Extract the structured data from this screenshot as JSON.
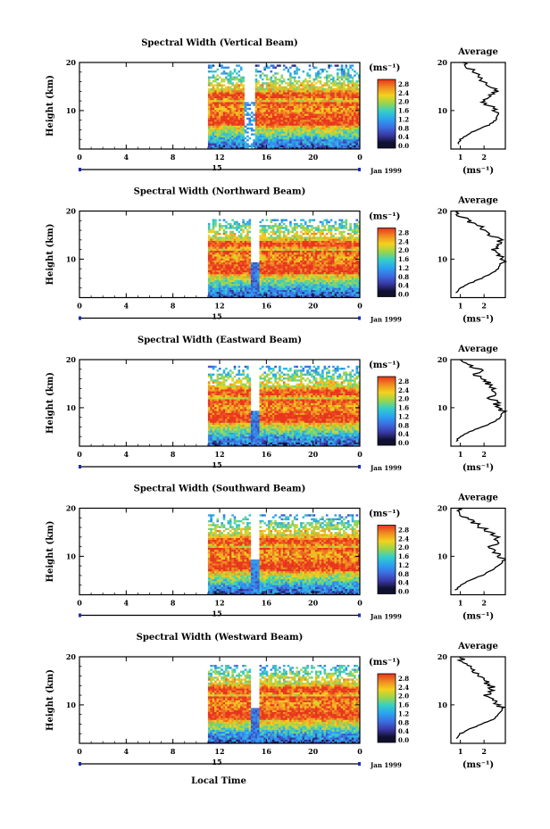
{
  "chart_data": {
    "type": "heatmap",
    "figure_xlabel": "Local Time",
    "colorbar_unit": "(ms⁻¹)",
    "colorbar_ticks": [
      "2.8",
      "2.4",
      "2.0",
      "1.6",
      "1.2",
      "0.8",
      "0.4",
      "0.0"
    ],
    "colorbar_colors": [
      "#e8341c",
      "#f08a22",
      "#f4d11d",
      "#9bd54a",
      "#35cfc6",
      "#2aa4ee",
      "#3b6fe3",
      "#3a3aa8",
      "#101030"
    ],
    "height_ticks": [
      "20",
      "10"
    ],
    "time_ticks": [
      "0",
      "4",
      "8",
      "12",
      "16",
      "20",
      "0"
    ],
    "date_marker": "15",
    "date_label": "Jan 1999",
    "profile_title": "Average",
    "profile_ticks": [
      "1",
      "2"
    ],
    "panels": [
      {
        "title": "Spectral Width (Vertical Beam)",
        "ylabel": "Height (km)",
        "profile_unit": "(ms⁻¹)",
        "xlim": [
          0,
          24
        ],
        "ylim": [
          2,
          20
        ],
        "data_start_hour": 11,
        "data_top_km": 19.5,
        "gap_hours": [
          14.0,
          15.0
        ],
        "avg_profile": {
          "height_km": [
            3,
            4,
            5,
            6,
            7,
            8,
            9,
            10,
            11,
            12,
            13,
            14,
            15,
            16,
            17,
            18,
            19,
            20
          ],
          "width_ms": [
            0.9,
            1.0,
            1.3,
            1.7,
            2.2,
            2.5,
            2.6,
            2.5,
            2.2,
            2.0,
            2.3,
            2.5,
            2.3,
            2.0,
            1.8,
            1.6,
            1.3,
            1.1
          ]
        }
      },
      {
        "title": "Spectral Width (Northward Beam)",
        "ylabel": "Height (km)",
        "profile_unit": "(ms⁻¹)",
        "xlim": [
          0,
          24
        ],
        "ylim": [
          2,
          20
        ],
        "data_start_hour": 11,
        "data_top_km": 18.5,
        "gap_hours": [
          14.5,
          15.3
        ],
        "avg_profile": {
          "height_km": [
            3,
            4,
            5,
            6,
            7,
            8,
            9,
            10,
            11,
            12,
            13,
            14,
            15,
            16,
            17,
            18,
            19,
            20
          ],
          "width_ms": [
            0.8,
            1.0,
            1.4,
            1.9,
            2.3,
            2.6,
            2.7,
            2.8,
            2.6,
            2.4,
            2.6,
            2.7,
            2.3,
            2.1,
            1.7,
            1.3,
            1.0,
            0.9
          ]
        }
      },
      {
        "title": "Spectral Width (Eastward Beam)",
        "ylabel": "Height (km)",
        "profile_unit": "(ms⁻¹)",
        "xlim": [
          0,
          24
        ],
        "ylim": [
          2,
          20
        ],
        "data_start_hour": 11,
        "data_top_km": 19.0,
        "gap_hours": [
          14.5,
          15.3
        ],
        "avg_profile": {
          "height_km": [
            3,
            4,
            5,
            6,
            7,
            8,
            9,
            10,
            11,
            12,
            13,
            14,
            15,
            16,
            17,
            18,
            19,
            20
          ],
          "width_ms": [
            0.8,
            1.0,
            1.4,
            1.9,
            2.4,
            2.7,
            2.8,
            2.7,
            2.5,
            2.3,
            2.6,
            2.4,
            2.2,
            2.0,
            1.6,
            1.9,
            1.2,
            1.0
          ]
        }
      },
      {
        "title": "Spectral Width (Southward Beam)",
        "ylabel": "Height (km)",
        "profile_unit": "(ms⁻¹)",
        "xlim": [
          0,
          24
        ],
        "ylim": [
          2,
          20
        ],
        "data_start_hour": 11,
        "data_top_km": 19.0,
        "gap_hours": [
          14.5,
          15.3
        ],
        "avg_profile": {
          "height_km": [
            3,
            4,
            5,
            6,
            7,
            8,
            9,
            10,
            11,
            12,
            13,
            14,
            15,
            16,
            17,
            18,
            19,
            20
          ],
          "width_ms": [
            0.8,
            1.0,
            1.4,
            1.9,
            2.3,
            2.6,
            2.8,
            2.7,
            2.4,
            2.3,
            2.6,
            2.5,
            2.2,
            1.9,
            1.6,
            1.3,
            1.0,
            0.9
          ]
        }
      },
      {
        "title": "Spectral Width (Westward Beam)",
        "ylabel": "Height (km)",
        "profile_unit": "(ms⁻¹)",
        "xlim": [
          0,
          24
        ],
        "ylim": [
          2,
          20
        ],
        "data_start_hour": 11,
        "data_top_km": 18.5,
        "gap_hours": [
          14.5,
          15.3
        ],
        "avg_profile": {
          "height_km": [
            3,
            4,
            5,
            6,
            7,
            8,
            9,
            10,
            11,
            12,
            13,
            14,
            15,
            16,
            17,
            18,
            19,
            20
          ],
          "width_ms": [
            0.8,
            1.0,
            1.4,
            1.9,
            2.4,
            2.6,
            2.8,
            2.6,
            2.3,
            2.1,
            2.4,
            2.3,
            2.0,
            1.8,
            1.5,
            1.3,
            1.1,
            1.0
          ]
        }
      }
    ]
  }
}
